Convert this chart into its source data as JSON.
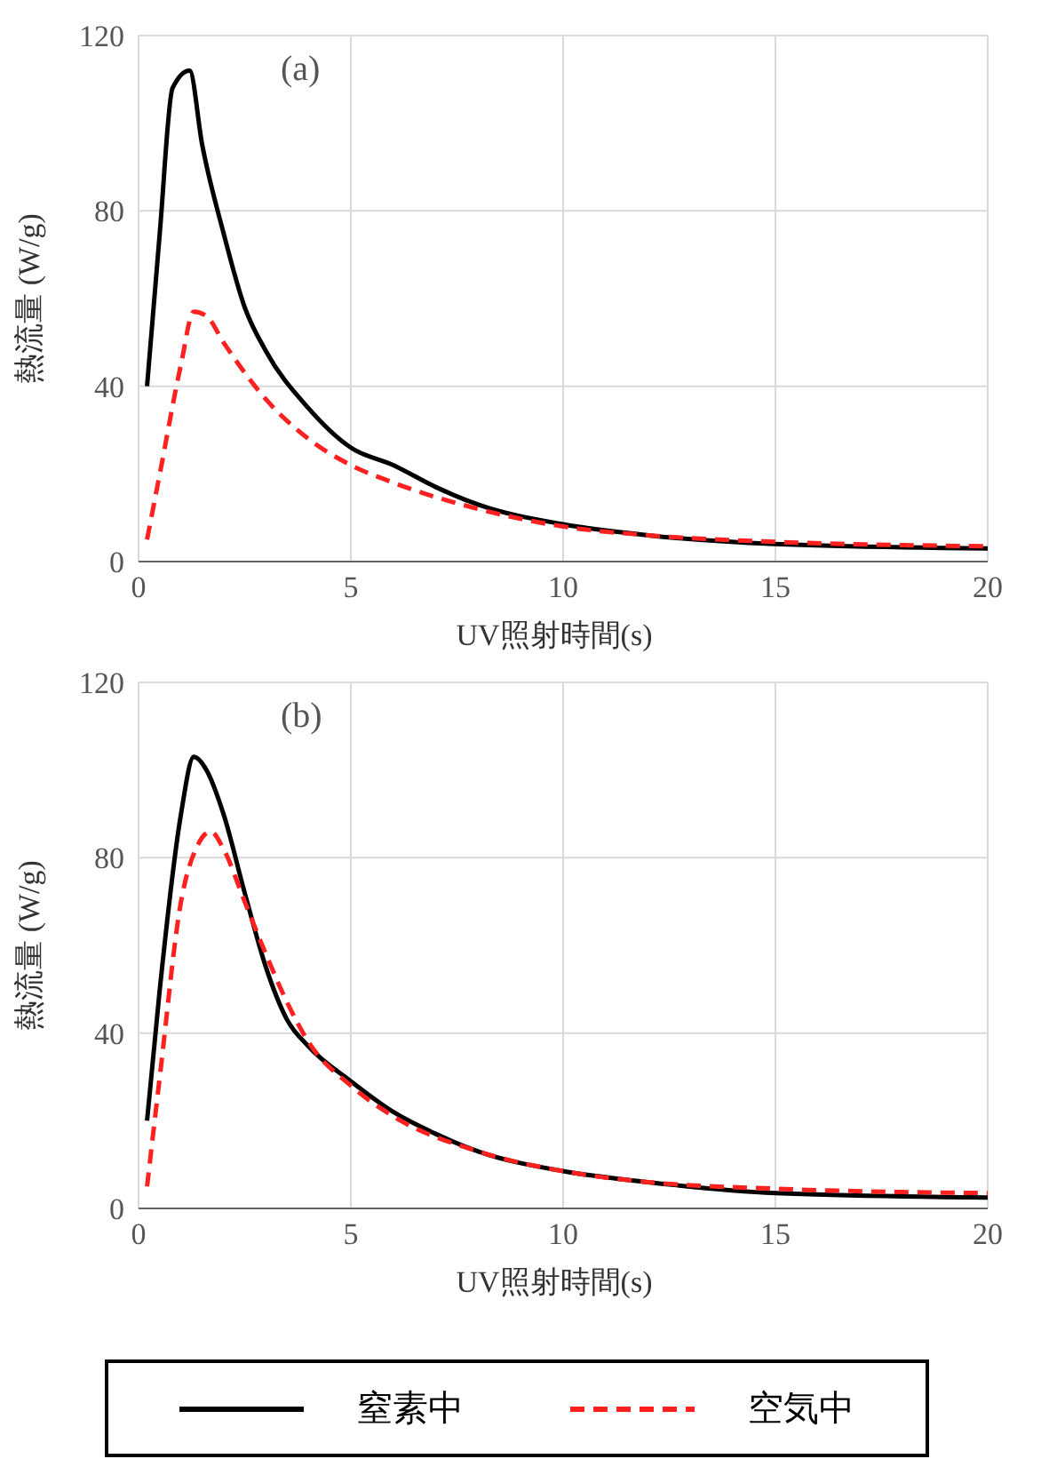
{
  "chart_data": [
    {
      "type": "line",
      "title": "(a)",
      "xlabel": "UV照射時間(s)",
      "ylabel": "熱流量 (W/g)",
      "xlim": [
        0,
        20
      ],
      "xticks": [
        0,
        5,
        10,
        15,
        20
      ],
      "ylim": [
        0,
        120
      ],
      "yticks": [
        0,
        40,
        80,
        120
      ],
      "grid": true,
      "legend": false,
      "series": [
        {
          "color": "#000000",
          "line_style": "solid",
          "x": [
            0.2,
            0.5,
            0.8,
            1.2,
            1.5,
            2,
            2.5,
            3,
            4,
            5,
            6,
            7,
            8,
            10,
            12,
            15,
            20
          ],
          "values": [
            40,
            75,
            108,
            112,
            95,
            75,
            58,
            48,
            35,
            26,
            22,
            17,
            13,
            8.5,
            6,
            4,
            3
          ]
        },
        {
          "color": "#ff2020",
          "line_style": "dashed",
          "x": [
            0.2,
            0.5,
            1,
            1.3,
            1.6,
            2,
            3,
            4,
            5,
            6,
            8,
            10,
            12,
            15,
            20
          ],
          "values": [
            5,
            20,
            45,
            57,
            56,
            50,
            37,
            28,
            22,
            18,
            12,
            8,
            6,
            4.5,
            3.5
          ]
        }
      ]
    },
    {
      "type": "line",
      "title": "(b)",
      "xlabel": "UV照射時間(s)",
      "ylabel": "熱流量 (W/g)",
      "xlim": [
        0,
        20
      ],
      "xticks": [
        0,
        5,
        10,
        15,
        20
      ],
      "ylim": [
        0,
        120
      ],
      "yticks": [
        0,
        40,
        80,
        120
      ],
      "grid": true,
      "legend": "bottom",
      "series": [
        {
          "name": "窒素中",
          "color": "#000000",
          "line_style": "solid",
          "x": [
            0.2,
            0.5,
            1,
            1.3,
            1.6,
            2,
            2.5,
            3,
            3.5,
            4,
            5,
            6,
            7,
            8,
            10,
            12,
            15,
            20
          ],
          "values": [
            20,
            50,
            90,
            103,
            100,
            90,
            72,
            55,
            43,
            37,
            29,
            22,
            17,
            13,
            8.5,
            6,
            3.5,
            2.5
          ]
        },
        {
          "name": "空気中",
          "color": "#ff2020",
          "line_style": "dashed",
          "x": [
            0.2,
            0.5,
            1,
            1.4,
            1.7,
            2,
            2.5,
            3,
            3.5,
            4,
            5,
            6,
            8,
            10,
            12,
            15,
            20
          ],
          "values": [
            5,
            30,
            70,
            83,
            86,
            82,
            70,
            58,
            47,
            38,
            28,
            21,
            13,
            8.5,
            6,
            4.5,
            3.5
          ]
        }
      ]
    }
  ]
}
